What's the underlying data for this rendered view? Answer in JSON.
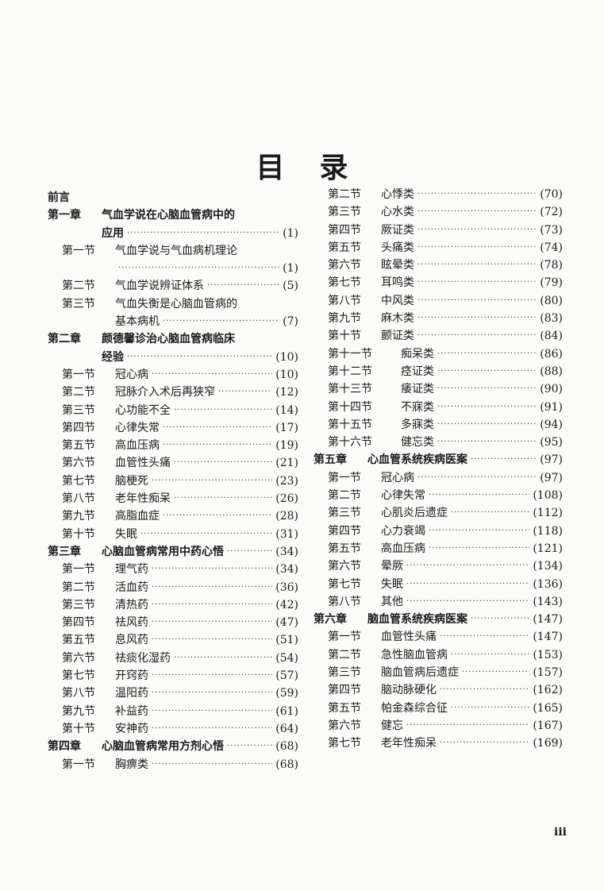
{
  "title": [
    "目",
    "录"
  ],
  "folio": "iii",
  "left_column": [
    {
      "type": "plain",
      "label": "前言"
    },
    {
      "type": "chap",
      "label": "第一章",
      "title": "气血学说在心脑血管病中的",
      "continued": "应用",
      "page": "(1)"
    },
    {
      "type": "sec",
      "label": "第一节",
      "title": "气血学说与气血病机理论",
      "continued": "",
      "page": "(1)"
    },
    {
      "type": "sec",
      "label": "第二节",
      "title": "气血学说辨证体系",
      "page": "(5)"
    },
    {
      "type": "sec",
      "label": "第三节",
      "title": "气血失衡是心脑血管病的",
      "continued": "基本病机",
      "page": "(7)"
    },
    {
      "type": "chap",
      "label": "第二章",
      "title": "颜德馨诊治心脑血管病临床",
      "continued": "经验",
      "page": "(10)"
    },
    {
      "type": "sec",
      "label": "第一节",
      "title": "冠心病",
      "page": "(10)"
    },
    {
      "type": "sec",
      "label": "第二节",
      "title": "冠脉介入术后再狭窄",
      "page": "(12)"
    },
    {
      "type": "sec",
      "label": "第三节",
      "title": "心功能不全",
      "page": "(14)"
    },
    {
      "type": "sec",
      "label": "第四节",
      "title": "心律失常",
      "page": "(17)"
    },
    {
      "type": "sec",
      "label": "第五节",
      "title": "高血压病",
      "page": "(19)"
    },
    {
      "type": "sec",
      "label": "第六节",
      "title": "血管性头痛",
      "page": "(21)"
    },
    {
      "type": "sec",
      "label": "第七节",
      "title": "脑梗死",
      "page": "(23)"
    },
    {
      "type": "sec",
      "label": "第八节",
      "title": "老年性痴呆",
      "page": "(26)"
    },
    {
      "type": "sec",
      "label": "第九节",
      "title": "高脂血症",
      "page": "(28)"
    },
    {
      "type": "sec",
      "label": "第十节",
      "title": "失眠",
      "page": "(31)"
    },
    {
      "type": "chap",
      "label": "第三章",
      "title": "心脑血管病常用中药心悟",
      "page": "(34)"
    },
    {
      "type": "sec",
      "label": "第一节",
      "title": "理气药",
      "page": "(34)"
    },
    {
      "type": "sec",
      "label": "第二节",
      "title": "活血药",
      "page": "(36)"
    },
    {
      "type": "sec",
      "label": "第三节",
      "title": "清热药",
      "page": "(42)"
    },
    {
      "type": "sec",
      "label": "第四节",
      "title": "祛风药",
      "page": "(47)"
    },
    {
      "type": "sec",
      "label": "第五节",
      "title": "息风药",
      "page": "(51)"
    },
    {
      "type": "sec",
      "label": "第六节",
      "title": "祛痰化湿药",
      "page": "(54)"
    },
    {
      "type": "sec",
      "label": "第七节",
      "title": "开窍药",
      "page": "(57)"
    },
    {
      "type": "sec",
      "label": "第八节",
      "title": "温阳药",
      "page": "(59)"
    },
    {
      "type": "sec",
      "label": "第九节",
      "title": "补益药",
      "page": "(61)"
    },
    {
      "type": "sec",
      "label": "第十节",
      "title": "安神药",
      "page": "(64)"
    },
    {
      "type": "chap",
      "label": "第四章",
      "title": "心脑血管病常用方剂心悟",
      "page": "(68)"
    },
    {
      "type": "sec",
      "label": "第一节",
      "title": "胸痹类",
      "page": "(68)"
    }
  ],
  "right_column": [
    {
      "type": "sec",
      "label": "第二节",
      "title": "心悸类",
      "page": "(70)"
    },
    {
      "type": "sec",
      "label": "第三节",
      "title": "心水类",
      "page": "(72)"
    },
    {
      "type": "sec",
      "label": "第四节",
      "title": "厥证类",
      "page": "(73)"
    },
    {
      "type": "sec",
      "label": "第五节",
      "title": "头痛类",
      "page": "(74)"
    },
    {
      "type": "sec",
      "label": "第六节",
      "title": "眩晕类",
      "page": "(78)"
    },
    {
      "type": "sec",
      "label": "第七节",
      "title": "耳鸣类",
      "page": "(79)"
    },
    {
      "type": "sec",
      "label": "第八节",
      "title": "中风类",
      "page": "(80)"
    },
    {
      "type": "sec",
      "label": "第九节",
      "title": "麻木类",
      "page": "(83)"
    },
    {
      "type": "sec",
      "label": "第十节",
      "title": "颤证类",
      "page": "(84)"
    },
    {
      "type": "sec",
      "wide": true,
      "label": "第十一节",
      "title": "痴呆类",
      "page": "(86)"
    },
    {
      "type": "sec",
      "wide": true,
      "label": "第十二节",
      "title": "痉证类",
      "page": "(88)"
    },
    {
      "type": "sec",
      "wide": true,
      "label": "第十三节",
      "title": "痿证类",
      "page": "(90)"
    },
    {
      "type": "sec",
      "wide": true,
      "label": "第十四节",
      "title": "不寐类",
      "page": "(91)"
    },
    {
      "type": "sec",
      "wide": true,
      "label": "第十五节",
      "title": "多寐类",
      "page": "(94)"
    },
    {
      "type": "sec",
      "wide": true,
      "label": "第十六节",
      "title": "健忘类",
      "page": "(95)"
    },
    {
      "type": "chap",
      "label": "第五章",
      "title": "心血管系统疾病医案",
      "page": "(97)"
    },
    {
      "type": "sec",
      "label": "第一节",
      "title": "冠心病",
      "page": "(97)"
    },
    {
      "type": "sec",
      "label": "第二节",
      "title": "心律失常",
      "page": "(108)"
    },
    {
      "type": "sec",
      "label": "第三节",
      "title": "心肌炎后遗症",
      "page": "(112)"
    },
    {
      "type": "sec",
      "label": "第四节",
      "title": "心力衰竭",
      "page": "(118)"
    },
    {
      "type": "sec",
      "label": "第五节",
      "title": "高血压病",
      "page": "(121)"
    },
    {
      "type": "sec",
      "label": "第六节",
      "title": "晕厥",
      "page": "(134)"
    },
    {
      "type": "sec",
      "label": "第七节",
      "title": "失眠",
      "page": "(136)"
    },
    {
      "type": "sec",
      "label": "第八节",
      "title": "其他",
      "page": "(143)"
    },
    {
      "type": "chap",
      "label": "第六章",
      "title": "脑血管系统疾病医案",
      "page": "(147)"
    },
    {
      "type": "sec",
      "label": "第一节",
      "title": "血管性头痛",
      "page": "(147)"
    },
    {
      "type": "sec",
      "label": "第二节",
      "title": "急性脑血管病",
      "page": "(153)"
    },
    {
      "type": "sec",
      "label": "第三节",
      "title": "脑血管病后遗症",
      "page": "(157)"
    },
    {
      "type": "sec",
      "label": "第四节",
      "title": "脑动脉硬化",
      "page": "(162)"
    },
    {
      "type": "sec",
      "label": "第五节",
      "title": "帕金森综合征",
      "page": "(165)"
    },
    {
      "type": "sec",
      "label": "第六节",
      "title": "健忘",
      "page": "(167)"
    },
    {
      "type": "sec",
      "label": "第七节",
      "title": "老年性痴呆",
      "page": "(169)"
    }
  ]
}
